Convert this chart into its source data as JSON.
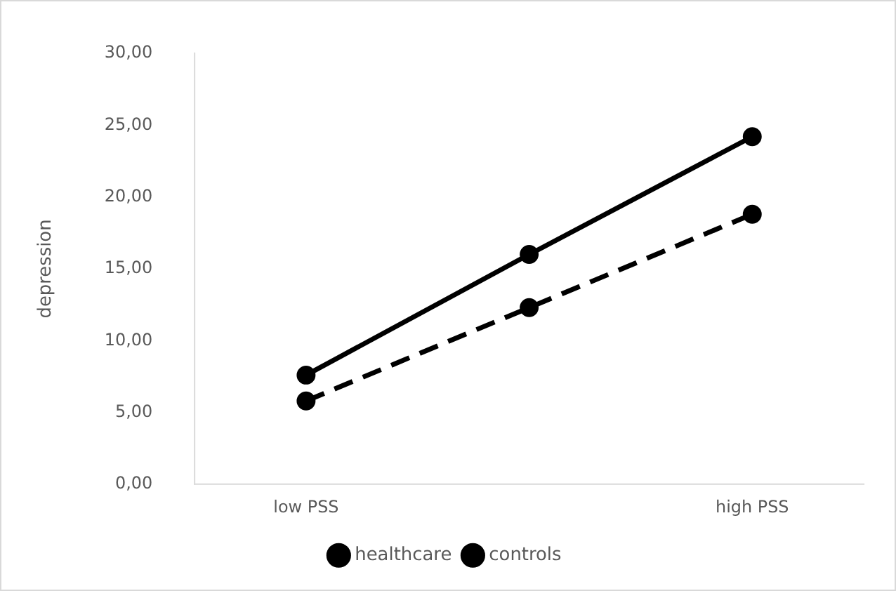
{
  "chart_data": {
    "type": "line",
    "ylabel": "depression",
    "categories": [
      "low PSS",
      null,
      "high PSS"
    ],
    "series": [
      {
        "name": "healthcare",
        "color": "#000000",
        "line_style": "dashed",
        "values": [
          5.8,
          12.3,
          18.8
        ]
      },
      {
        "name": "controls",
        "color": "#000000",
        "line_style": "solid",
        "values": [
          7.6,
          16.0,
          24.2
        ]
      }
    ],
    "ylim": [
      0,
      30
    ],
    "yticks": [
      {
        "value": 0,
        "label": "0,00"
      },
      {
        "value": 5,
        "label": "5,00"
      },
      {
        "value": 10,
        "label": "10,00"
      },
      {
        "value": 15,
        "label": "15,00"
      },
      {
        "value": 20,
        "label": "20,00"
      },
      {
        "value": 25,
        "label": "25,00"
      },
      {
        "value": 30,
        "label": "30,00"
      }
    ],
    "grid": false,
    "legend": "bottom",
    "marker": "circle"
  }
}
